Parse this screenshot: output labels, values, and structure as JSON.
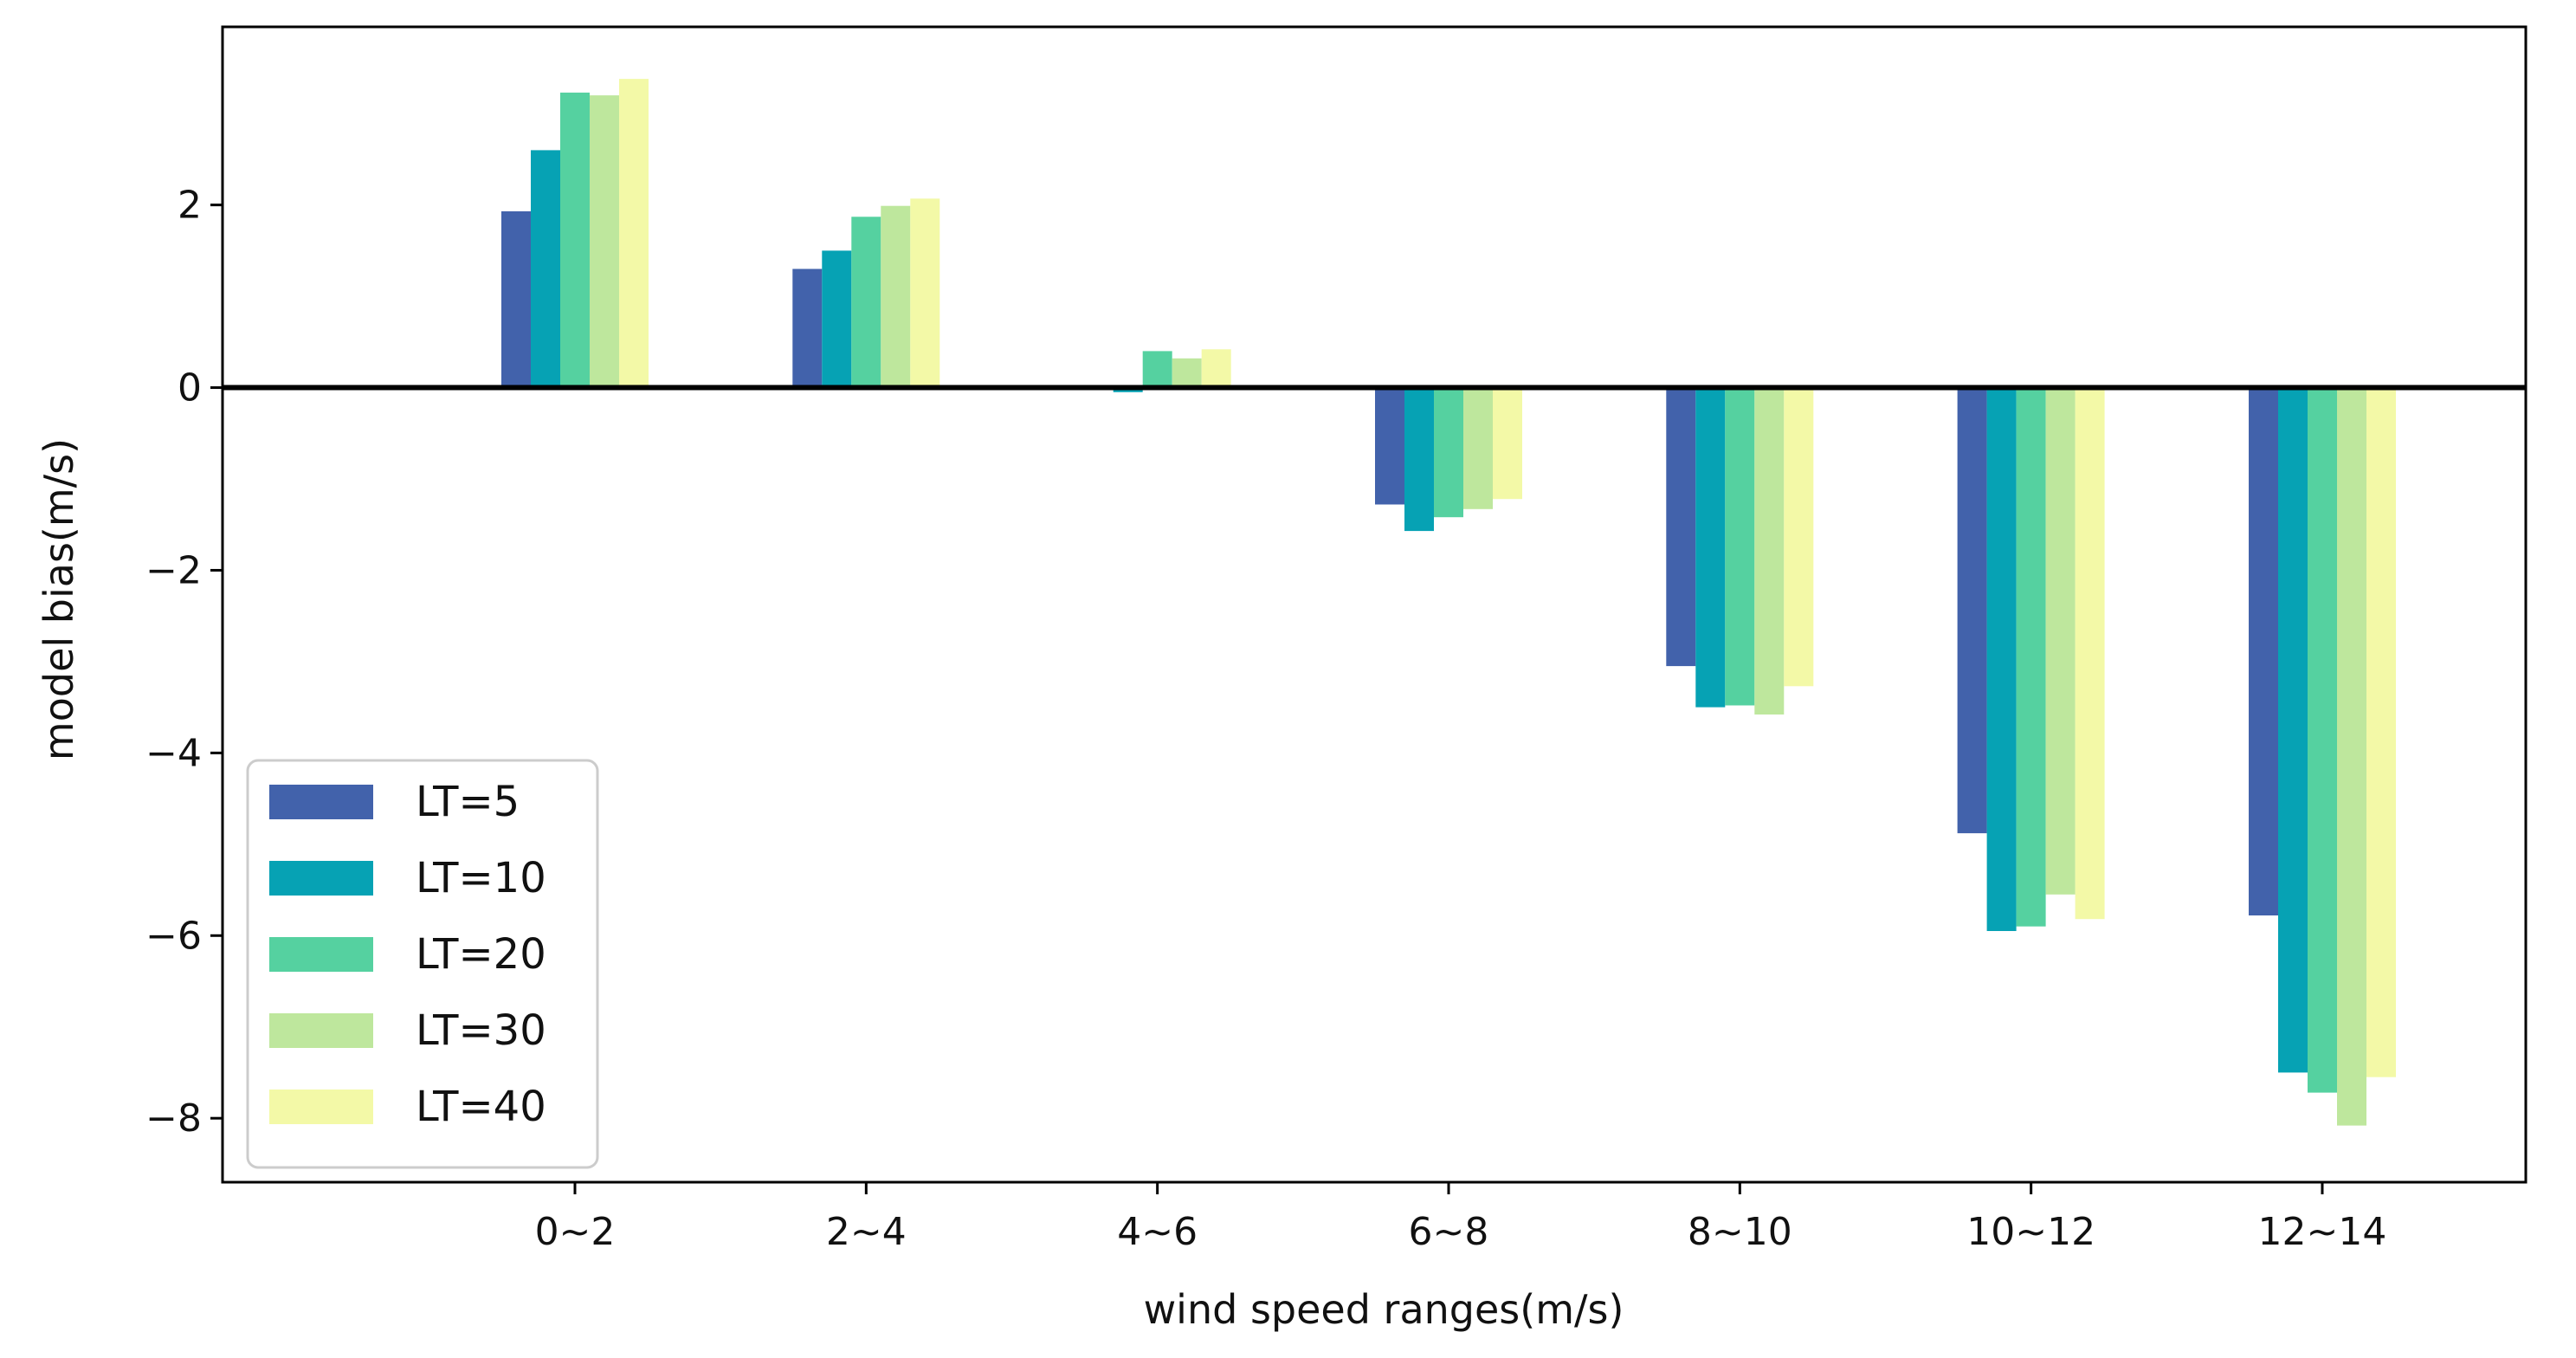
{
  "chart_data": {
    "type": "bar",
    "title": "",
    "xlabel": "wind speed ranges(m/s)",
    "ylabel": "model bias(m/s)",
    "categories": [
      "0~2",
      "2~4",
      "4~6",
      "6~8",
      "8~10",
      "10~12",
      "12~14"
    ],
    "ylim": [
      -8.7,
      3.95
    ],
    "yticks": [
      2,
      0,
      -2,
      -4,
      -6,
      -8
    ],
    "ytick_labels": [
      "2",
      "0",
      "−2",
      "−4",
      "−6",
      "−8"
    ],
    "zero_line": true,
    "grid": false,
    "legend_position": "lower-left",
    "series": [
      {
        "name": "LT=5",
        "color": "#4262ab",
        "values": [
          1.93,
          1.3,
          0.0,
          -1.28,
          -3.05,
          -4.88,
          -5.78
        ]
      },
      {
        "name": "LT=10",
        "color": "#06a2b4",
        "values": [
          2.6,
          1.5,
          -0.05,
          -1.57,
          -3.5,
          -5.95,
          -7.5
        ]
      },
      {
        "name": "LT=20",
        "color": "#55d1a0",
        "values": [
          3.23,
          1.87,
          0.4,
          -1.42,
          -3.48,
          -5.9,
          -7.72
        ]
      },
      {
        "name": "LT=30",
        "color": "#bee79d",
        "values": [
          3.2,
          1.99,
          0.32,
          -1.33,
          -3.58,
          -5.55,
          -8.08
        ]
      },
      {
        "name": "LT=40",
        "color": "#f3f9a7",
        "values": [
          3.38,
          2.07,
          0.42,
          -1.22,
          -3.27,
          -5.82,
          -7.55
        ]
      }
    ]
  }
}
